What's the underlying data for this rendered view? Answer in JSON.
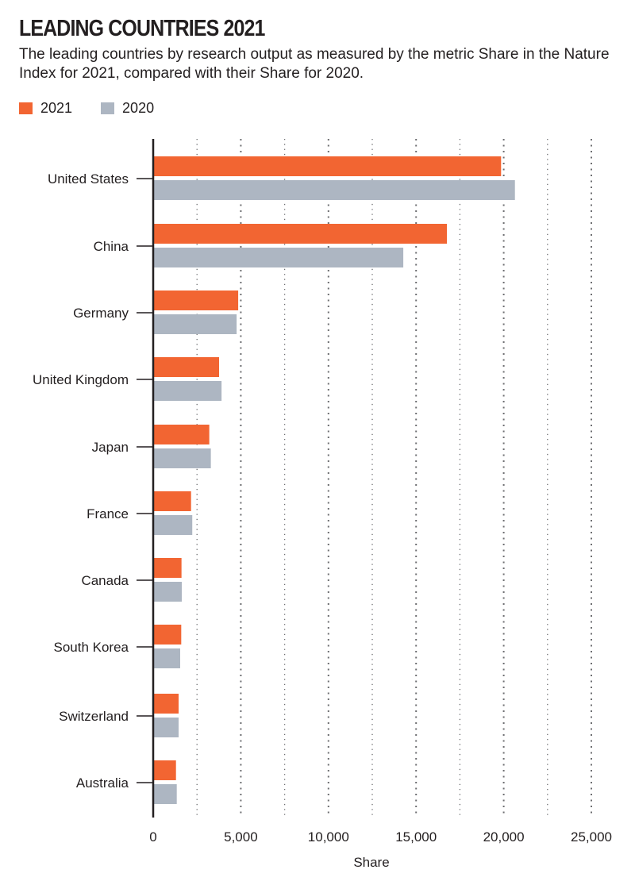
{
  "chart_data": {
    "type": "bar",
    "orientation": "horizontal",
    "title": "LEADING COUNTRIES 2021",
    "subtitle": "The leading countries by research output as measured by the metric Share in the Nature Index for 2021, compared with their Share for 2020.",
    "xlabel": "Share",
    "ylabel": "",
    "xlim": [
      0,
      25000
    ],
    "xticks": [
      0,
      5000,
      10000,
      15000,
      20000,
      25000
    ],
    "xtick_labels": [
      "0",
      "5,000",
      "10,000",
      "15,000",
      "20,000",
      "25,000"
    ],
    "grid": true,
    "legend_position": "top-left",
    "categories": [
      "United States",
      "China",
      "Germany",
      "United Kingdom",
      "Japan",
      "France",
      "Canada",
      "South Korea",
      "Switzerland",
      "Australia"
    ],
    "series": [
      {
        "name": "2021",
        "color": "#f26532",
        "values": [
          19850,
          16760,
          4850,
          3760,
          3200,
          2160,
          1615,
          1600,
          1450,
          1300
        ]
      },
      {
        "name": "2020",
        "color": "#adb6c2",
        "values": [
          20640,
          14270,
          4760,
          3900,
          3290,
          2230,
          1630,
          1540,
          1450,
          1345
        ]
      }
    ]
  }
}
